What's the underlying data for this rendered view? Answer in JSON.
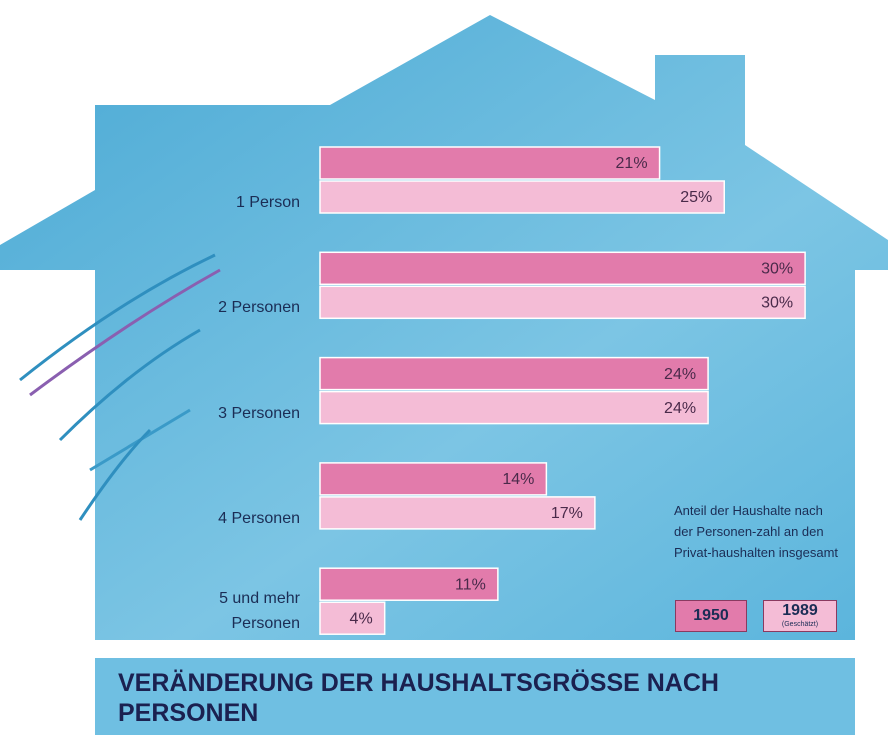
{
  "chart_data": {
    "type": "bar",
    "orientation": "horizontal",
    "title": "VERÄNDERUNG DER HAUSHALTSGRÖSSE NACH PERSONEN",
    "categories": [
      "1 Person",
      "2 Personen",
      "3 Personen",
      "4 Personen",
      "5 und mehr Personen"
    ],
    "series": [
      {
        "name": "1950",
        "color": "#e27bab",
        "values": [
          21,
          30,
          24,
          14,
          11
        ],
        "value_labels": [
          "21%",
          "30%",
          "24%",
          "14%",
          "11%"
        ]
      },
      {
        "name": "1989",
        "note": "(Geschätzt)",
        "color": "#f4bcd6",
        "values": [
          25,
          30,
          24,
          17,
          4
        ],
        "value_labels": [
          "25%",
          "30%",
          "24%",
          "17%",
          "4%"
        ]
      }
    ],
    "annotation": "Anteil der Haushalte nach der Personen-zahl an den Privat-haushalten insgesamt"
  }
}
